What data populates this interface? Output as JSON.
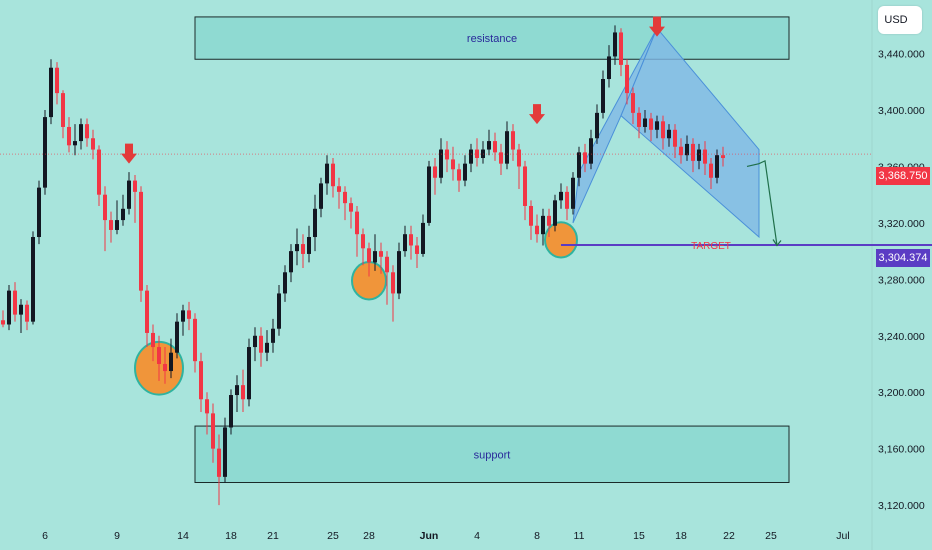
{
  "currency": "USD",
  "chart_data": {
    "type": "candlestick",
    "title": "",
    "y_axis": {
      "ticks": [
        "3,440.000",
        "3,400.000",
        "3,360.000",
        "3,320.000",
        "3,280.000",
        "3,240.000",
        "3,200.000",
        "3,160.000",
        "3,120.000"
      ],
      "tick_values": [
        3440,
        3400,
        3360,
        3320,
        3280,
        3240,
        3200,
        3160,
        3120
      ],
      "ylim": [
        3108,
        3478
      ]
    },
    "x_axis": {
      "labels": [
        "6",
        "9",
        "14",
        "18",
        "21",
        "25",
        "28",
        "Jun",
        "4",
        "8",
        "11",
        "15",
        "18",
        "22",
        "25",
        "Jul"
      ],
      "label_index": [
        7,
        19,
        30,
        38,
        45,
        55,
        61,
        71,
        79,
        89,
        96,
        106,
        113,
        121,
        128,
        140
      ],
      "bold": [
        "Jun"
      ]
    },
    "last_price": {
      "label": "3,368.750",
      "value": 3368.75,
      "color": "#f23645"
    },
    "target": {
      "label": "TARGET",
      "price_label": "3,304.374",
      "value": 3304.374,
      "color": "#5b3cc4"
    },
    "zones": [
      {
        "name": "resistance",
        "label": "resistance",
        "from_index": 32,
        "to_index": 131,
        "low": 3436,
        "high": 3466
      },
      {
        "name": "support",
        "label": "support",
        "from_index": 32,
        "to_index": 131,
        "low": 3136,
        "high": 3176
      }
    ],
    "highlights": [
      {
        "index": 26,
        "price": 3217,
        "color": "#f0953a"
      },
      {
        "index": 61,
        "price": 3279,
        "color": "#f0953a"
      },
      {
        "index": 93,
        "price": 3308,
        "color": "#f0953a"
      }
    ],
    "arrows": [
      {
        "index": 21,
        "price": 3362
      },
      {
        "index": 89,
        "price": 3390
      },
      {
        "index": 109,
        "price": 3452
      }
    ],
    "projection": [
      {
        "index": 124,
        "price": 3360
      },
      {
        "index": 126,
        "price": 3362
      },
      {
        "index": 127,
        "price": 3364
      },
      {
        "index": 129,
        "price": 3304
      }
    ],
    "channel": {
      "up": [
        {
          "index": 96,
          "price": 3356
        },
        {
          "index": 109,
          "price": 3458
        },
        {
          "index": 103,
          "price": 3396
        },
        {
          "index": 95,
          "price": 3320
        }
      ],
      "down": [
        {
          "index": 109,
          "price": 3458
        },
        {
          "index": 126,
          "price": 3372
        },
        {
          "index": 126,
          "price": 3310
        },
        {
          "index": 103,
          "price": 3396
        }
      ]
    },
    "candles": [
      [
        3251,
        3248,
        3258,
        3246
      ],
      [
        3248,
        3272,
        3276,
        3244
      ],
      [
        3272,
        3255,
        3278,
        3250
      ],
      [
        3255,
        3262,
        3266,
        3242
      ],
      [
        3262,
        3250,
        3265,
        3244
      ],
      [
        3250,
        3310,
        3314,
        3248
      ],
      [
        3310,
        3345,
        3350,
        3305
      ],
      [
        3345,
        3395,
        3400,
        3340
      ],
      [
        3395,
        3430,
        3436,
        3390
      ],
      [
        3430,
        3412,
        3434,
        3404
      ],
      [
        3412,
        3388,
        3414,
        3380
      ],
      [
        3388,
        3375,
        3395,
        3370
      ],
      [
        3375,
        3378,
        3390,
        3368
      ],
      [
        3378,
        3390,
        3394,
        3372
      ],
      [
        3390,
        3380,
        3394,
        3374
      ],
      [
        3380,
        3372,
        3386,
        3365
      ],
      [
        3372,
        3340,
        3375,
        3332
      ],
      [
        3340,
        3322,
        3346,
        3300
      ],
      [
        3322,
        3315,
        3328,
        3306
      ],
      [
        3315,
        3322,
        3336,
        3312
      ],
      [
        3322,
        3330,
        3340,
        3318
      ],
      [
        3330,
        3350,
        3356,
        3326
      ],
      [
        3350,
        3342,
        3354,
        3320
      ],
      [
        3342,
        3272,
        3346,
        3264
      ],
      [
        3272,
        3242,
        3276,
        3232
      ],
      [
        3242,
        3232,
        3248,
        3222
      ],
      [
        3232,
        3220,
        3240,
        3208
      ],
      [
        3220,
        3215,
        3232,
        3206
      ],
      [
        3215,
        3228,
        3238,
        3210
      ],
      [
        3228,
        3250,
        3256,
        3224
      ],
      [
        3250,
        3258,
        3262,
        3240
      ],
      [
        3258,
        3252,
        3264,
        3244
      ],
      [
        3252,
        3222,
        3256,
        3214
      ],
      [
        3222,
        3195,
        3228,
        3186
      ],
      [
        3195,
        3185,
        3200,
        3170
      ],
      [
        3185,
        3160,
        3192,
        3150
      ],
      [
        3160,
        3140,
        3170,
        3120
      ],
      [
        3140,
        3175,
        3182,
        3136
      ],
      [
        3175,
        3198,
        3202,
        3170
      ],
      [
        3198,
        3205,
        3212,
        3186
      ],
      [
        3205,
        3195,
        3216,
        3186
      ],
      [
        3195,
        3232,
        3238,
        3190
      ],
      [
        3232,
        3240,
        3246,
        3222
      ],
      [
        3240,
        3228,
        3246,
        3218
      ],
      [
        3228,
        3235,
        3244,
        3222
      ],
      [
        3235,
        3245,
        3252,
        3228
      ],
      [
        3245,
        3270,
        3276,
        3240
      ],
      [
        3270,
        3285,
        3290,
        3264
      ],
      [
        3285,
        3300,
        3305,
        3278
      ],
      [
        3300,
        3305,
        3316,
        3290
      ],
      [
        3305,
        3298,
        3312,
        3288
      ],
      [
        3298,
        3310,
        3318,
        3292
      ],
      [
        3310,
        3330,
        3340,
        3300
      ],
      [
        3330,
        3348,
        3352,
        3324
      ],
      [
        3348,
        3362,
        3368,
        3340
      ],
      [
        3362,
        3346,
        3366,
        3338
      ],
      [
        3346,
        3342,
        3352,
        3330
      ],
      [
        3342,
        3334,
        3346,
        3322
      ],
      [
        3334,
        3328,
        3338,
        3316
      ],
      [
        3328,
        3312,
        3332,
        3296
      ],
      [
        3312,
        3302,
        3316,
        3290
      ],
      [
        3302,
        3292,
        3306,
        3282
      ],
      [
        3292,
        3300,
        3312,
        3286
      ],
      [
        3300,
        3296,
        3306,
        3284
      ],
      [
        3296,
        3285,
        3300,
        3262
      ],
      [
        3285,
        3270,
        3290,
        3250
      ],
      [
        3270,
        3300,
        3306,
        3266
      ],
      [
        3300,
        3312,
        3318,
        3296
      ],
      [
        3312,
        3304,
        3318,
        3294
      ],
      [
        3304,
        3298,
        3310,
        3288
      ],
      [
        3298,
        3320,
        3326,
        3296
      ],
      [
        3320,
        3360,
        3364,
        3318
      ],
      [
        3360,
        3352,
        3366,
        3340
      ],
      [
        3352,
        3372,
        3380,
        3348
      ],
      [
        3372,
        3365,
        3378,
        3356
      ],
      [
        3365,
        3358,
        3374,
        3350
      ],
      [
        3358,
        3350,
        3362,
        3342
      ],
      [
        3350,
        3362,
        3368,
        3346
      ],
      [
        3362,
        3372,
        3376,
        3356
      ],
      [
        3372,
        3366,
        3380,
        3360
      ],
      [
        3366,
        3372,
        3378,
        3362
      ],
      [
        3372,
        3378,
        3386,
        3368
      ],
      [
        3378,
        3370,
        3384,
        3364
      ],
      [
        3370,
        3362,
        3376,
        3354
      ],
      [
        3362,
        3385,
        3392,
        3358
      ],
      [
        3385,
        3372,
        3390,
        3364
      ],
      [
        3372,
        3360,
        3376,
        3344
      ],
      [
        3360,
        3332,
        3364,
        3322
      ],
      [
        3332,
        3318,
        3336,
        3308
      ],
      [
        3318,
        3312,
        3326,
        3306
      ],
      [
        3312,
        3325,
        3330,
        3304
      ],
      [
        3325,
        3318,
        3330,
        3310
      ],
      [
        3318,
        3336,
        3340,
        3314
      ],
      [
        3336,
        3342,
        3348,
        3330
      ],
      [
        3342,
        3330,
        3346,
        3322
      ],
      [
        3330,
        3352,
        3356,
        3326
      ],
      [
        3352,
        3370,
        3374,
        3346
      ],
      [
        3370,
        3362,
        3376,
        3356
      ],
      [
        3362,
        3380,
        3386,
        3358
      ],
      [
        3380,
        3398,
        3404,
        3376
      ],
      [
        3398,
        3422,
        3428,
        3394
      ],
      [
        3422,
        3438,
        3446,
        3416
      ],
      [
        3438,
        3455,
        3460,
        3432
      ],
      [
        3455,
        3432,
        3458,
        3424
      ],
      [
        3432,
        3412,
        3436,
        3404
      ],
      [
        3412,
        3398,
        3416,
        3390
      ],
      [
        3398,
        3388,
        3402,
        3380
      ],
      [
        3388,
        3394,
        3400,
        3384
      ],
      [
        3394,
        3386,
        3398,
        3378
      ],
      [
        3386,
        3392,
        3396,
        3380
      ],
      [
        3392,
        3380,
        3396,
        3372
      ],
      [
        3380,
        3386,
        3390,
        3374
      ],
      [
        3386,
        3374,
        3390,
        3366
      ],
      [
        3374,
        3368,
        3380,
        3362
      ],
      [
        3368,
        3376,
        3382,
        3364
      ],
      [
        3376,
        3364,
        3380,
        3356
      ],
      [
        3364,
        3372,
        3376,
        3358
      ],
      [
        3372,
        3362,
        3378,
        3354
      ],
      [
        3362,
        3352,
        3366,
        3344
      ],
      [
        3352,
        3368,
        3372,
        3348
      ],
      [
        3368,
        3366,
        3374,
        3360
      ]
    ]
  }
}
